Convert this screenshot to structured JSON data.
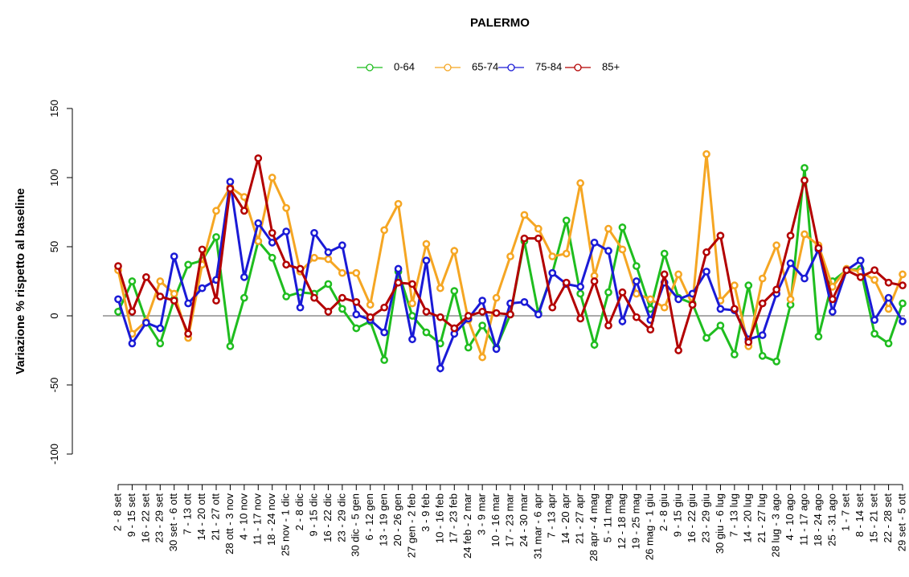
{
  "chart_data": {
    "type": "line",
    "title": "PALERMO",
    "y_label": "Variazione % rispetto al baseline",
    "categories": [
      "2 - 8 set",
      "9 - 15 set",
      "16 - 22 set",
      "23 - 29 set",
      "30 set - 6 ott",
      "7 - 13 ott",
      "14 - 20 ott",
      "21 - 27 ott",
      "28 ott - 3 nov",
      "4 - 10 nov",
      "11 - 17 nov",
      "18 - 24 nov",
      "25 nov - 1 dic",
      "2 - 8 dic",
      "9 - 15 dic",
      "16 - 22 dic",
      "23 - 29 dic",
      "30 dic - 5 gen",
      "6 - 12 gen",
      "13 - 19 gen",
      "20 - 26 gen",
      "27 gen - 2 feb",
      "3 - 9 feb",
      "10 - 16 feb",
      "17 - 23 feb",
      "24 feb - 2 mar",
      "3 - 9 mar",
      "10 - 16 mar",
      "17 - 23 mar",
      "24 - 30 mar",
      "31 mar - 6 apr",
      "7 - 13 apr",
      "14 - 20 apr",
      "21 - 27 apr",
      "28 apr - 4 mag",
      "5 - 11 mag",
      "12 - 18 mag",
      "19 - 25 mag",
      "26 mag - 1 giu",
      "2 - 8 giu",
      "9 - 15 giu",
      "16 - 22 giu",
      "23 - 29 giu",
      "30 giu - 6 lug",
      "7 - 13 lug",
      "14 - 20 lug",
      "21 - 27 lug",
      "28 lug - 3 ago",
      "4 - 10 ago",
      "11 - 17 ago",
      "18 - 24 ago",
      "25 - 31 ago",
      "1 - 7 set",
      "8 - 14 set",
      "15 - 21 set",
      "22 - 28 set",
      "29 set - 5 ott"
    ],
    "series": [
      {
        "name": "0-64",
        "color": "#1fbd1f",
        "values": [
          3,
          25,
          -4,
          -20,
          12,
          37,
          40,
          57,
          -22,
          13,
          54,
          42,
          14,
          17,
          16,
          23,
          5,
          -9,
          -4,
          -32,
          32,
          0,
          -12,
          -20,
          18,
          -23,
          -7,
          -23,
          1,
          54,
          2,
          31,
          69,
          16,
          -21,
          17,
          64,
          36,
          5,
          45,
          13,
          9,
          -16,
          -7,
          -28,
          22,
          -29,
          -33,
          8,
          107,
          -15,
          25,
          33,
          34,
          -13,
          -20,
          9
        ]
      },
      {
        "name": "65-74",
        "color": "#f5a623",
        "values": [
          33,
          -13,
          -4,
          25,
          16,
          -16,
          37,
          76,
          93,
          86,
          54,
          100,
          78,
          32,
          42,
          41,
          31,
          31,
          8,
          62,
          81,
          9,
          52,
          20,
          47,
          -3,
          -30,
          13,
          43,
          73,
          63,
          43,
          45,
          96,
          29,
          63,
          48,
          16,
          12,
          6,
          30,
          8,
          117,
          11,
          22,
          -22,
          27,
          51,
          12,
          59,
          51,
          21,
          34,
          32,
          26,
          5,
          30
        ]
      },
      {
        "name": "75-84",
        "color": "#1a1ad6",
        "values": [
          12,
          -20,
          -5,
          -9,
          43,
          9,
          20,
          26,
          97,
          28,
          67,
          53,
          61,
          6,
          60,
          46,
          51,
          1,
          -3,
          -12,
          34,
          -17,
          40,
          -38,
          -13,
          -2,
          11,
          -24,
          9,
          10,
          1,
          31,
          23,
          21,
          53,
          47,
          -4,
          25,
          -3,
          24,
          12,
          16,
          32,
          5,
          4,
          -17,
          -14,
          16,
          38,
          27,
          48,
          3,
          33,
          40,
          -3,
          13,
          -4
        ]
      },
      {
        "name": "85+",
        "color": "#b30000",
        "values": [
          36,
          3,
          28,
          14,
          11,
          -13,
          48,
          11,
          92,
          76,
          114,
          60,
          37,
          34,
          13,
          3,
          13,
          10,
          -1,
          6,
          24,
          23,
          3,
          -1,
          -9,
          0,
          3,
          2,
          1,
          56,
          56,
          6,
          24,
          -2,
          25,
          -7,
          17,
          -1,
          -10,
          30,
          -25,
          8,
          46,
          58,
          5,
          -19,
          9,
          19,
          58,
          98,
          49,
          12,
          33,
          28,
          33,
          24,
          22
        ]
      }
    ],
    "ylim": [
      -100,
      150
    ],
    "yticks": [
      -100,
      -50,
      0,
      50,
      100,
      150
    ],
    "hline": 0,
    "legend": "top"
  }
}
